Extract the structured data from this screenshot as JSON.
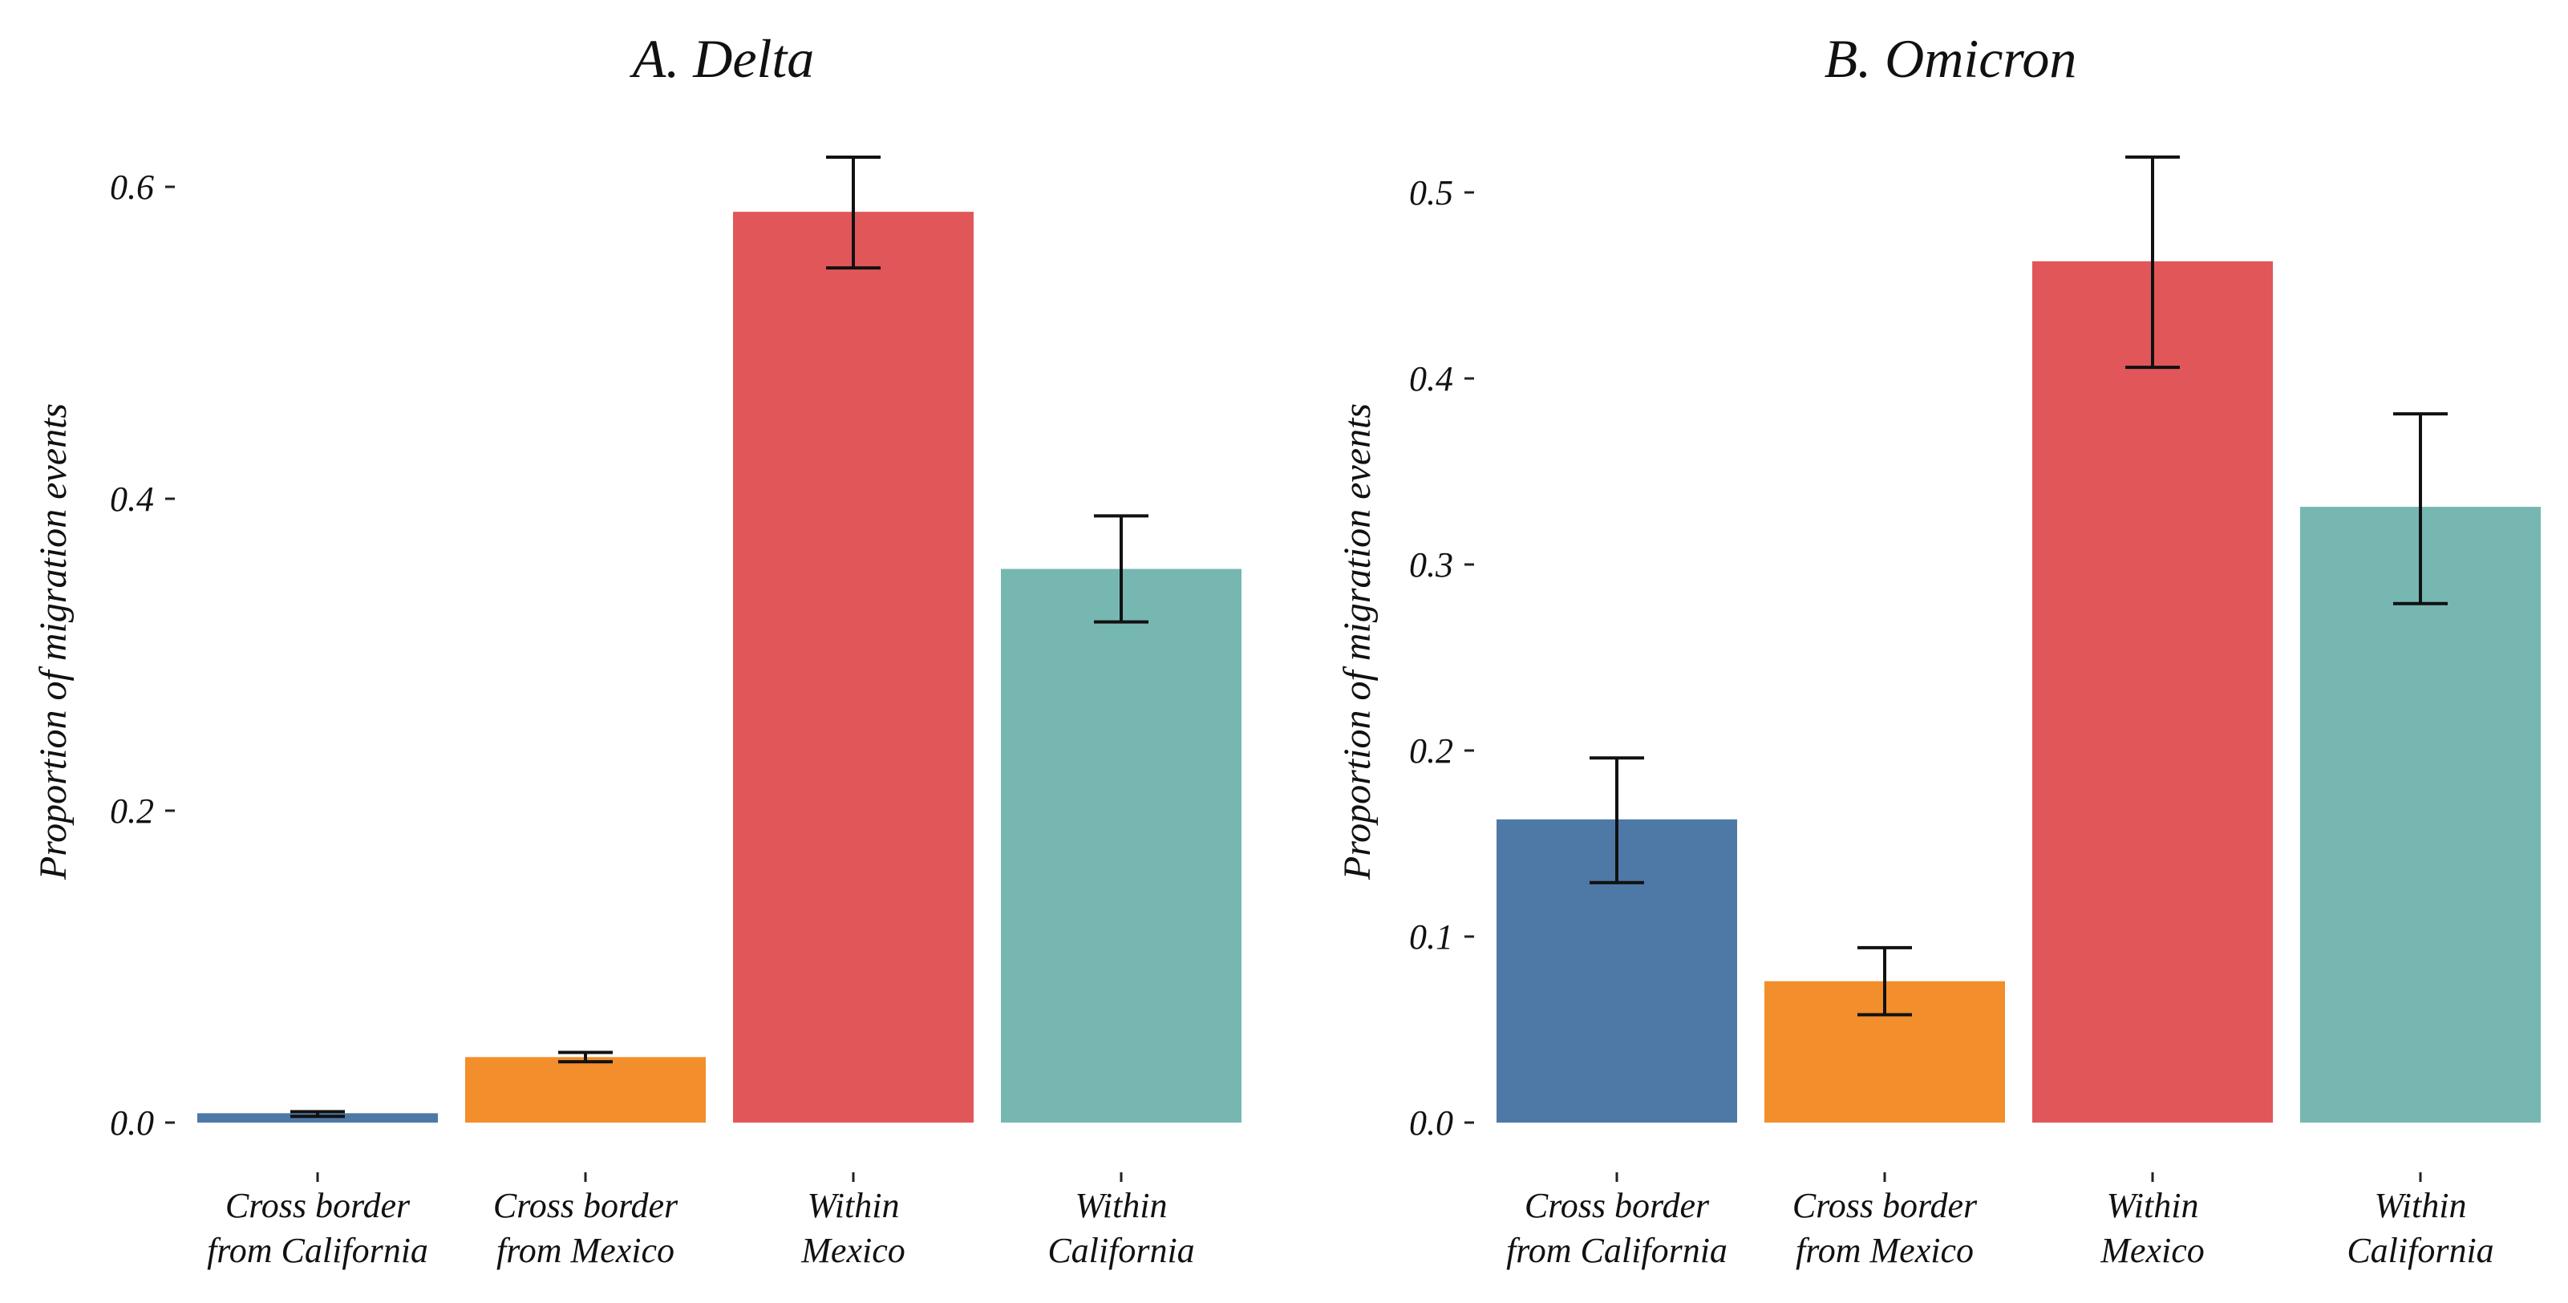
{
  "chart_data": [
    {
      "type": "bar",
      "title": "A. Delta",
      "xlabel": "",
      "ylabel": "Proportion of migration events",
      "ylim": [
        0,
        0.63
      ],
      "yticks": [
        0.0,
        0.2,
        0.4,
        0.6
      ],
      "ytick_labels": [
        "0.0",
        "0.2",
        "0.4",
        "0.6"
      ],
      "categories": [
        [
          "Cross border",
          "from California"
        ],
        [
          "Cross border",
          "from Mexico"
        ],
        [
          "Within",
          "Mexico"
        ],
        [
          "Within",
          "California"
        ]
      ],
      "values": [
        0.006,
        0.042,
        0.584,
        0.355
      ],
      "errors_low": [
        0.004,
        0.039,
        0.548,
        0.321
      ],
      "errors_high": [
        0.007,
        0.045,
        0.619,
        0.389
      ],
      "colors": [
        "#4e79a7",
        "#f28e2b",
        "#e15759",
        "#76b7b2"
      ]
    },
    {
      "type": "bar",
      "title": "B. Omicron",
      "xlabel": "",
      "ylabel": "Proportion of migration events",
      "ylim": [
        0,
        0.53
      ],
      "yticks": [
        0.0,
        0.1,
        0.2,
        0.3,
        0.4,
        0.5
      ],
      "ytick_labels": [
        "0.0",
        "0.1",
        "0.2",
        "0.3",
        "0.4",
        "0.5"
      ],
      "categories": [
        [
          "Cross border",
          "from California"
        ],
        [
          "Cross border",
          "from Mexico"
        ],
        [
          "Within",
          "Mexico"
        ],
        [
          "Within",
          "California"
        ]
      ],
      "values": [
        0.163,
        0.076,
        0.463,
        0.331
      ],
      "errors_low": [
        0.129,
        0.058,
        0.406,
        0.279
      ],
      "errors_high": [
        0.196,
        0.094,
        0.519,
        0.381
      ],
      "colors": [
        "#4e79a7",
        "#f28e2b",
        "#e15759",
        "#76b7b2"
      ]
    }
  ]
}
